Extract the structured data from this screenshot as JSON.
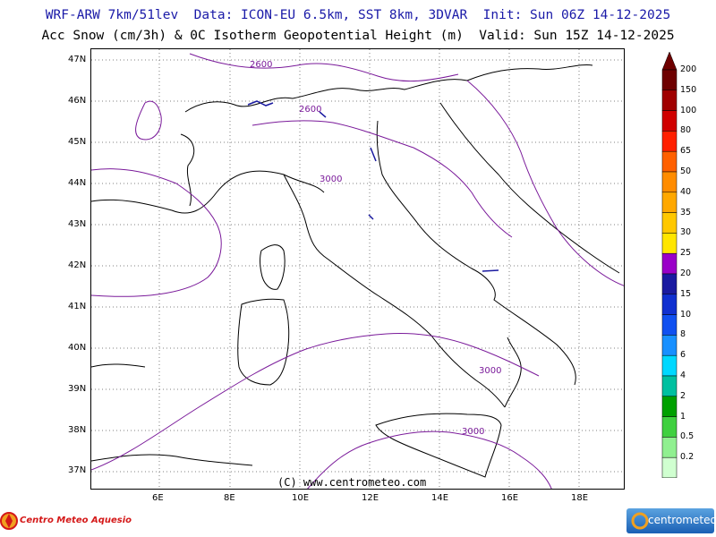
{
  "header": {
    "line1": "WRF-ARW 7km/51lev  Data: ICON-EU 6.5km, SST 8km, 3DVAR  Init: Sun 06Z 14-12-2025",
    "line2": "Acc Snow (cm/3h) & 0C Isotherm Geopotential Height (m)  Valid: Sun 15Z 14-12-2025"
  },
  "axes": {
    "lat_labels": [
      "47N",
      "46N",
      "45N",
      "44N",
      "43N",
      "42N",
      "41N",
      "40N",
      "39N",
      "38N",
      "37N"
    ],
    "lon_labels": [
      "6E",
      "8E",
      "10E",
      "12E",
      "14E",
      "16E",
      "18E"
    ]
  },
  "contours": {
    "labels": [
      "2600",
      "2600",
      "3000",
      "3000",
      "3000"
    ],
    "color": "#7a1a9a"
  },
  "legend": {
    "values": [
      "200",
      "150",
      "100",
      "80",
      "65",
      "50",
      "40",
      "35",
      "30",
      "25",
      "20",
      "15",
      "10",
      "8",
      "6",
      "4",
      "2",
      "1",
      "0.5",
      "0.2"
    ],
    "colors": [
      "#6e0000",
      "#a00000",
      "#d00000",
      "#ff2000",
      "#ff6000",
      "#ff8c00",
      "#ffa800",
      "#ffc800",
      "#ffe600",
      "#9a00c8",
      "#1a1aa0",
      "#1030d0",
      "#1050f0",
      "#1890ff",
      "#00d8ff",
      "#00c0a0",
      "#00a000",
      "#40d040",
      "#90f090",
      "#d0ffd0"
    ]
  },
  "credit": "(C) www.centrometeo.com",
  "logos": {
    "left": "Centro Meteo Aquesio",
    "right": "centrometeo"
  }
}
